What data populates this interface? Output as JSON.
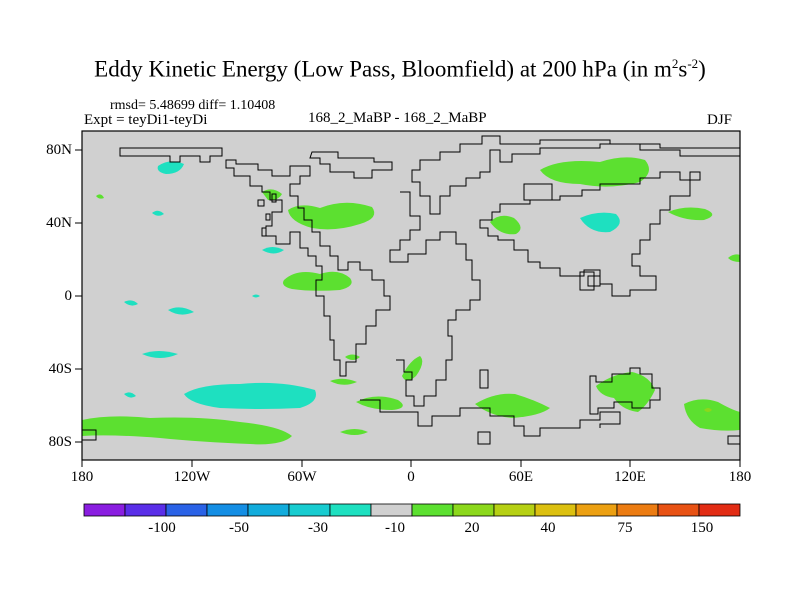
{
  "chart_data": {
    "type": "contour-map",
    "title_main": "Eddy Kinetic Energy (Low Pass, Bloomfield) at 200 hPa (in m",
    "title_unit_exp1": "2",
    "title_unit_s": "s",
    "title_unit_exp2": "-2",
    "title_close": ")",
    "stats": "rmsd= 5.48699 diff= 1.10408",
    "expt": "Expt = teyDi1-teyDi",
    "case": "168_2_MaBP - 168_2_MaBP",
    "season": "DJF",
    "lon_ticks": [
      "180",
      "120W",
      "60W",
      "0",
      "60E",
      "120E",
      "180"
    ],
    "lat_ticks": [
      "80N",
      "40N",
      "0",
      "40S",
      "80S"
    ],
    "lon_range": [
      -180,
      180
    ],
    "lat_range": [
      -90,
      90
    ],
    "colorbar_labels": [
      "-100",
      "-50",
      "-30",
      "-10",
      "20",
      "40",
      "75",
      "150"
    ],
    "colorbar_colors": [
      "#8a1ee0",
      "#5a2ee8",
      "#2a62e6",
      "#148ee4",
      "#12acdc",
      "#18ccd0",
      "#1ee0c0",
      "#d0d0d0",
      "#5ce030",
      "#8cd81c",
      "#b6d014",
      "#dcc010",
      "#eca012",
      "#ec7c12",
      "#e85214",
      "#e22c14"
    ],
    "field_color_positive": "#5ce030",
    "field_color_negative": "#1ee0c0",
    "field_color_strong_positive": "#8cd81c"
  }
}
